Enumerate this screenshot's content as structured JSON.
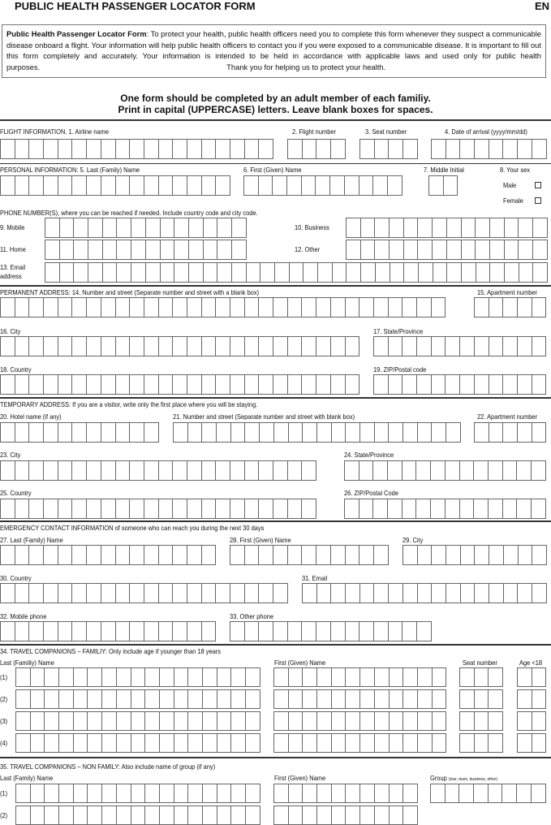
{
  "header": {
    "title": "PUBLIC HEALTH PASSENGER LOCATOR FORM",
    "lang": "EN"
  },
  "intro": {
    "bold": "Public Health Passenger Locator Form",
    "text": ": To protect your health, public health officers need you to complete this form whenever they suspect a communicable disease onboard a flight. Your information will help public health officers to contact you if you were exposed to a communicable disease. It is important to fill out this form completely and accurately. Your information is intended to be held in accordance with applicable laws and used only for public health purposes.",
    "thanks": "Thank you for helping us to protect your health."
  },
  "instructions": {
    "line1": "One form should be completed by an adult member of each familiy.",
    "line2": "Print in capital (UPPERCASE) letters. Leave blank boxes for spaces."
  },
  "flight": {
    "section": "FLIGHT INFORMATION.",
    "airline": "1.  Airline name",
    "flight_number": "2.  Flight number",
    "seat": "3.  Seat number",
    "date": "4.  Date of arrival (yyyy/mm/dd)"
  },
  "personal": {
    "section": "PERSONAL INFORMATION:",
    "last": "5.  Last (Family) Name",
    "first": "6.  First (Given) Name",
    "middle": "7.  Middle Initial",
    "sex": "8.  Your sex",
    "male": "Male",
    "female": "Female"
  },
  "phone": {
    "section": "PHONE NUMBER(S), where you can be reached if needed. Include country code and city code.",
    "mobile": "9.  Mobile",
    "business": "10.  Business",
    "home": "11.  Home",
    "other": "12.  Other",
    "email1": "13.  Email",
    "email2": "address"
  },
  "permanent": {
    "section": "PERMANENT ADDRESS:",
    "street": "14.   Number and street (Separate number and street with a blank box)",
    "apt": "15.  Apartment number",
    "city": "16.  City",
    "state": "17.  State/Province",
    "country": "18.  Country",
    "zip": "19.  ZIP/Postal code"
  },
  "temporary": {
    "section": "TEMPORARY ADDRESS: If you are a visitor, write only the first place where you will be staying.",
    "hotel": "20.  Hotel name (if any)",
    "street": "21.  Number and street (Separate number and street with blank box)",
    "apt": "22.  Apartment number",
    "city": "23.  City",
    "state": "24.  State/Province",
    "country": "25.  Country",
    "zip": "26.  ZIP/Postal Code"
  },
  "emergency": {
    "section": "EMERGENCY CONTACT INFORMATION of someone who can reach you during the next 30 days",
    "last": "27.  Last (Family) Name",
    "first": "28.  First (Given) Name",
    "city": "29.  City",
    "country": "30.  Country",
    "email": "31.  Email",
    "mobile": "32.  Mobile phone",
    "other": "33.  Other phone"
  },
  "family": {
    "section": "34.  TRAVEL COMPANIONS – FAMILIY: Only include age if younger than 18 years",
    "last": "Last (Familiy) Name",
    "first": "First (Given) Name",
    "seat": "Seat number",
    "age": "Age <18",
    "rows": [
      "(1)",
      "(2)",
      "(3)",
      "(4)"
    ]
  },
  "nonfamily": {
    "section": "35.  TRAVEL COMPANIONS – NON FAMILY: Also include name of group (if any)",
    "last": "Last (Family) Name",
    "first": "First (Given) Name",
    "group": "Group",
    "group_note": "(tour, team, business, other)",
    "rows": [
      "(1)",
      "(2)"
    ]
  }
}
